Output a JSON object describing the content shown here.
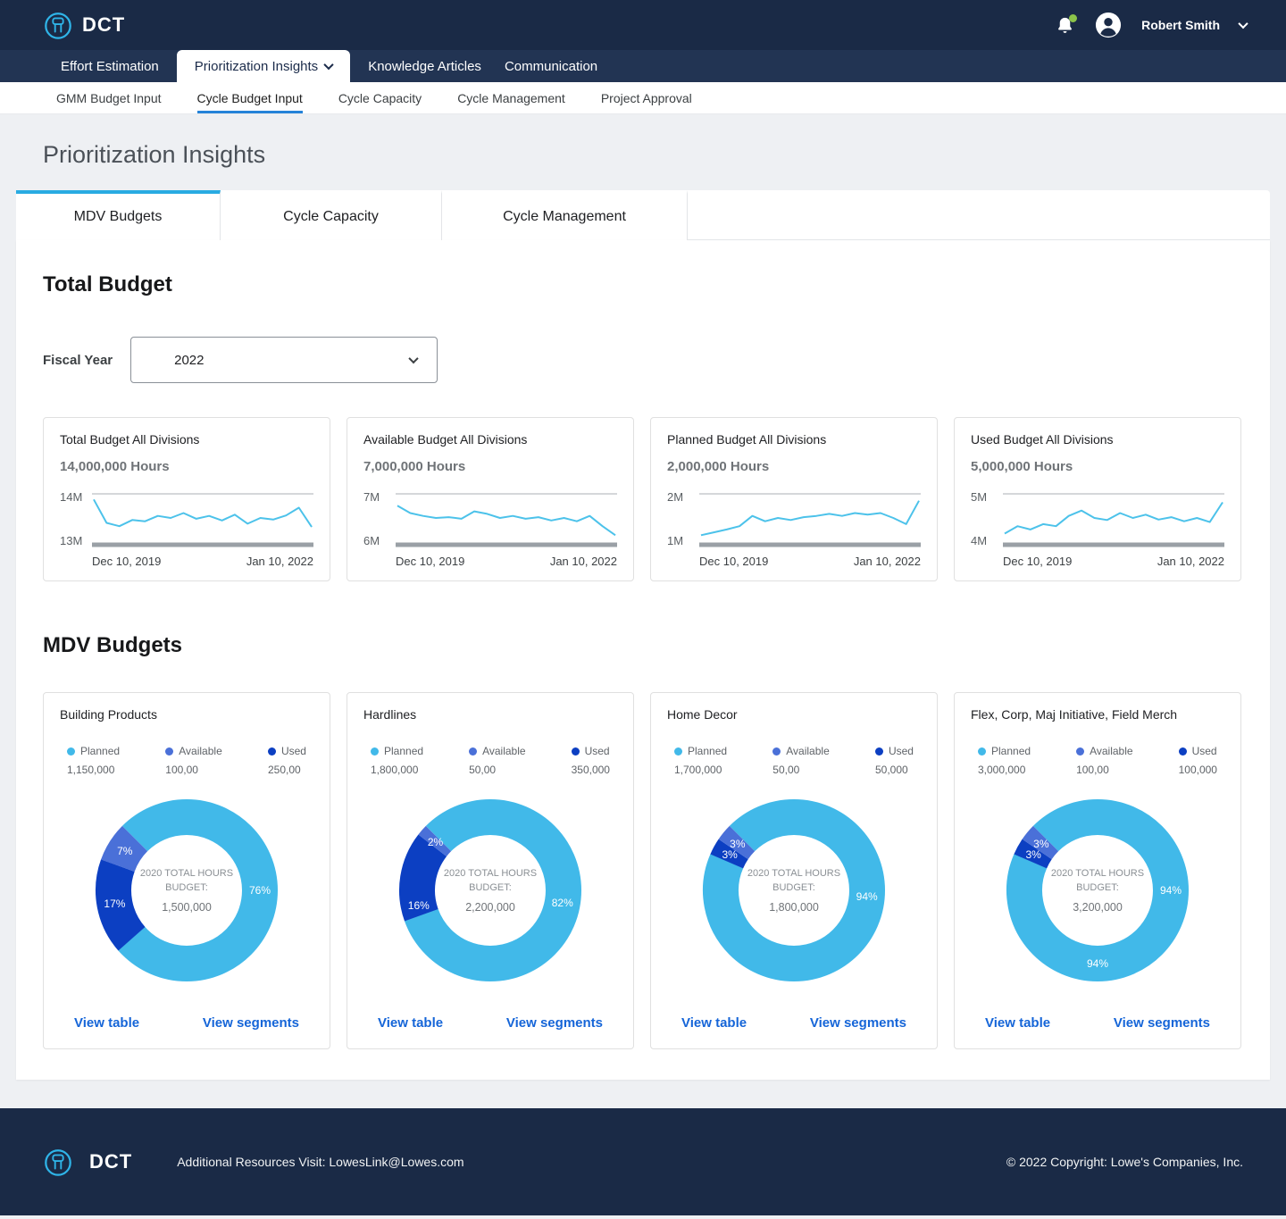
{
  "colors": {
    "header_bg": "#1a2a46",
    "nav_bg": "#223453",
    "accent_light": "#29abe2",
    "accent_blue": "#2583d8",
    "link": "#1565d8",
    "sparkline": "#4cc2ea",
    "planned": "#41b9e9",
    "available": "#4a70d8",
    "used": "#0c3fc2",
    "notification_badge": "#8bc34a"
  },
  "header": {
    "app_name": "DCT",
    "user_name": "Robert Smith"
  },
  "nav": {
    "items": [
      {
        "label": "Effort Estimation",
        "active": false
      },
      {
        "label": "Prioritization Insights",
        "active": true
      },
      {
        "label": "Knowledge Articles",
        "active": false
      },
      {
        "label": "Communication",
        "active": false
      }
    ]
  },
  "subnav": {
    "items": [
      {
        "label": "GMM Budget Input",
        "active": false
      },
      {
        "label": "Cycle Budget Input",
        "active": true
      },
      {
        "label": "Cycle Capacity",
        "active": false
      },
      {
        "label": "Cycle Management",
        "active": false
      },
      {
        "label": "Project Approval",
        "active": false
      }
    ]
  },
  "page_title": "Prioritization Insights",
  "tabs": [
    {
      "label": "MDV Budgets",
      "active": true
    },
    {
      "label": "Cycle Capacity",
      "active": false
    },
    {
      "label": "Cycle Management",
      "active": false
    }
  ],
  "total_budget": {
    "heading": "Total Budget",
    "fiscal_year_label": "Fiscal Year",
    "fiscal_year_value": "2022"
  },
  "mdv_heading": "MDV Budgets",
  "chart_data": {
    "line_cards": [
      {
        "type": "line",
        "title": "Total Budget All Divisions",
        "value": "14,000,000 Hours",
        "y_max_label": "14M",
        "y_min_label": "13M",
        "x_start_label": "Dec 10, 2019",
        "x_end_label": "Jan 10, 2022",
        "y_range": [
          13000000,
          14000000
        ],
        "points": [
          0.95,
          0.38,
          0.3,
          0.45,
          0.42,
          0.55,
          0.5,
          0.62,
          0.48,
          0.55,
          0.44,
          0.58,
          0.36,
          0.5,
          0.46,
          0.56,
          0.75,
          0.28
        ]
      },
      {
        "type": "line",
        "title": "Available Budget All Divisions",
        "value": "7,000,000 Hours",
        "y_max_label": "7M",
        "y_min_label": "6M",
        "x_start_label": "Dec 10, 2019",
        "x_end_label": "Jan 10, 2022",
        "y_range": [
          6000000,
          7000000
        ],
        "points": [
          0.8,
          0.62,
          0.55,
          0.5,
          0.52,
          0.48,
          0.66,
          0.6,
          0.5,
          0.55,
          0.48,
          0.52,
          0.44,
          0.5,
          0.42,
          0.55,
          0.3,
          0.08
        ]
      },
      {
        "type": "line",
        "title": "Planned Budget All Divisions",
        "value": "2,000,000 Hours",
        "y_max_label": "2M",
        "y_min_label": "1M",
        "x_start_label": "Dec 10, 2019",
        "x_end_label": "Jan 10, 2022",
        "y_range": [
          1000000,
          2000000
        ],
        "points": [
          0.08,
          0.15,
          0.22,
          0.3,
          0.55,
          0.42,
          0.5,
          0.45,
          0.52,
          0.55,
          0.6,
          0.55,
          0.62,
          0.58,
          0.62,
          0.5,
          0.35,
          0.92
        ]
      },
      {
        "type": "line",
        "title": "Used Budget All Divisions",
        "value": "5,000,000 Hours",
        "y_max_label": "5M",
        "y_min_label": "4M",
        "x_start_label": "Dec 10, 2019",
        "x_end_label": "Jan 10, 2022",
        "y_range": [
          4000000,
          5000000
        ],
        "points": [
          0.12,
          0.3,
          0.22,
          0.35,
          0.3,
          0.55,
          0.68,
          0.5,
          0.45,
          0.62,
          0.5,
          0.58,
          0.46,
          0.52,
          0.42,
          0.5,
          0.4,
          0.88
        ]
      }
    ],
    "donut_cards": [
      {
        "type": "donut",
        "title": "Building Products",
        "center_label": "2020 TOTAL HOURS BUDGET:",
        "center_value": "1,500,000",
        "legend": [
          {
            "name": "Planned",
            "value": "1,150,000",
            "color_key": "planned"
          },
          {
            "name": "Available",
            "value": "100,00",
            "color_key": "available"
          },
          {
            "name": "Used",
            "value": "250,00",
            "color_key": "used"
          }
        ],
        "segments": [
          {
            "name": "Planned",
            "pct": 76,
            "color_key": "planned",
            "label_angle": 90
          },
          {
            "name": "Used",
            "pct": 17,
            "color_key": "used"
          },
          {
            "name": "Available",
            "pct": 7,
            "color_key": "available"
          }
        ],
        "links": {
          "table": "View table",
          "segments": "View segments"
        }
      },
      {
        "type": "donut",
        "title": "Hardlines",
        "center_label": "2020 TOTAL HOURS BUDGET:",
        "center_value": "2,200,000",
        "legend": [
          {
            "name": "Planned",
            "value": "1,800,000",
            "color_key": "planned"
          },
          {
            "name": "Available",
            "value": "50,00",
            "color_key": "available"
          },
          {
            "name": "Used",
            "value": "350,000",
            "color_key": "used"
          }
        ],
        "segments": [
          {
            "name": "Planned",
            "pct": 82,
            "color_key": "planned",
            "label_angle": 100
          },
          {
            "name": "Used",
            "pct": 16,
            "color_key": "used",
            "label_angle": 258
          },
          {
            "name": "Available",
            "pct": 2,
            "color_key": "available"
          }
        ],
        "links": {
          "table": "View table",
          "segments": "View segments"
        }
      },
      {
        "type": "donut",
        "title": "Home Decor",
        "center_label": "2020 TOTAL HOURS BUDGET:",
        "center_value": "1,800,000",
        "legend": [
          {
            "name": "Planned",
            "value": "1,700,000",
            "color_key": "planned"
          },
          {
            "name": "Available",
            "value": "50,00",
            "color_key": "available"
          },
          {
            "name": "Used",
            "value": "50,000",
            "color_key": "used"
          }
        ],
        "segments": [
          {
            "name": "Planned",
            "pct": 94,
            "color_key": "planned",
            "label_angle": 95
          },
          {
            "name": "Used",
            "pct": 3,
            "color_key": "used"
          },
          {
            "name": "Available",
            "pct": 3,
            "color_key": "available"
          }
        ],
        "links": {
          "table": "View table",
          "segments": "View segments"
        }
      },
      {
        "type": "donut",
        "title": "Flex, Corp, Maj Initiative, Field Merch",
        "center_label": "2020 TOTAL HOURS BUDGET:",
        "center_value": "3,200,000",
        "legend": [
          {
            "name": "Planned",
            "value": "3,000,000",
            "color_key": "planned"
          },
          {
            "name": "Available",
            "value": "100,00",
            "color_key": "available"
          },
          {
            "name": "Used",
            "value": "100,000",
            "color_key": "used"
          }
        ],
        "segments": [
          {
            "name": "Planned",
            "pct": 94,
            "color_key": "planned",
            "label_angle": 90
          },
          {
            "name": "Used",
            "pct": 3,
            "color_key": "used"
          },
          {
            "name": "Available",
            "pct": 3,
            "color_key": "available"
          }
        ],
        "extra_labels": [
          {
            "text": "94%",
            "angle": 180
          }
        ],
        "links": {
          "table": "View table",
          "segments": "View segments"
        }
      }
    ]
  },
  "footer": {
    "app_name": "DCT",
    "resources_text": "Additional Resources Visit: LowesLink@Lowes.com",
    "copyright": "© 2022 Copyright: Lowe's Companies, Inc."
  }
}
